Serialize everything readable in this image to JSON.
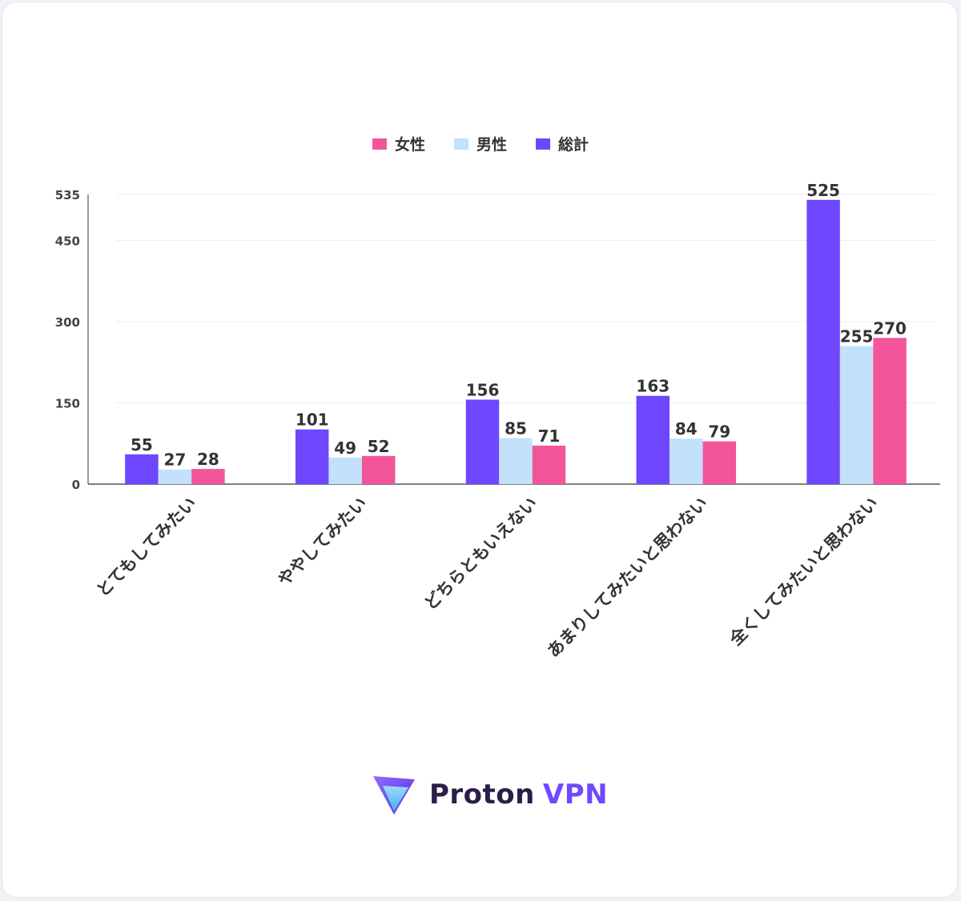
{
  "chart_data": {
    "type": "bar",
    "categories": [
      "とてもしてみたい",
      "ややしてみたい",
      "どちらともいえない",
      "あまりしてみたいと思わない",
      "全くしてみたいと思わない"
    ],
    "series": [
      {
        "name": "総計",
        "color": "#6e47ff",
        "values": [
          55,
          101,
          156,
          163,
          525
        ]
      },
      {
        "name": "男性",
        "color": "#c4e1fb",
        "values": [
          27,
          49,
          85,
          84,
          255
        ]
      },
      {
        "name": "女性",
        "color": "#f2559a",
        "values": [
          28,
          52,
          71,
          79,
          270
        ]
      }
    ],
    "legend_order": [
      "女性",
      "男性",
      "総計"
    ],
    "y_ticks": [
      0,
      150,
      300,
      450,
      535
    ],
    "ylim": [
      0,
      535
    ],
    "legend_position": "top-center",
    "grid": true
  },
  "brand": {
    "name_part1": "Proton",
    "name_part2": "VPN",
    "logo_icon": "proton-vpn-triangle-icon"
  }
}
